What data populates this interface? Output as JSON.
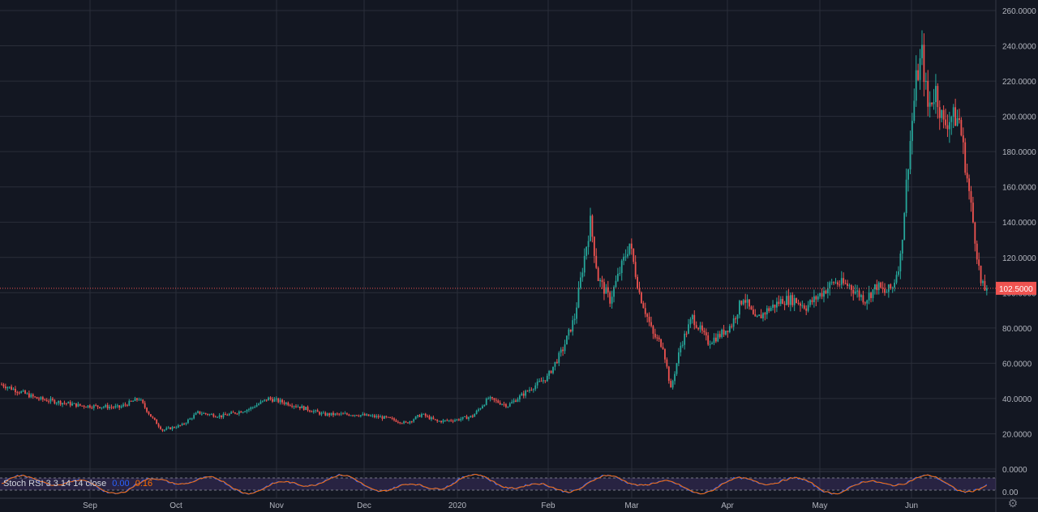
{
  "chart_data": {
    "type": "candlestick",
    "price_axis": {
      "ticks": [
        "0.0000",
        "20.0000",
        "40.0000",
        "60.0000",
        "80.0000",
        "100.0000",
        "120.0000",
        "140.0000",
        "160.0000",
        "180.0000",
        "200.0000",
        "220.0000",
        "240.0000",
        "260.0000"
      ],
      "ylim": [
        0,
        262
      ]
    },
    "time_axis": {
      "labels": [
        "Sep",
        "Oct",
        "Nov",
        "Dec",
        "2020",
        "Feb",
        "Mar",
        "Apr",
        "May",
        "Jun"
      ]
    },
    "last_price": "102.5000",
    "last_price_value": 102.5,
    "grid": true,
    "colors": {
      "up": "#26a69a",
      "down": "#ef5350",
      "background": "#131722",
      "grid": "#2a2e39",
      "stoch_k": "#2962ff",
      "stoch_d": "#ff6d00",
      "stoch_band": "#7e57c2"
    },
    "price_keypoints": [
      [
        0,
        48
      ],
      [
        18,
        40
      ],
      [
        40,
        36
      ],
      [
        60,
        35
      ],
      [
        70,
        40
      ],
      [
        76,
        30
      ],
      [
        82,
        22
      ],
      [
        92,
        25
      ],
      [
        100,
        32
      ],
      [
        112,
        30
      ],
      [
        126,
        34
      ],
      [
        136,
        40
      ],
      [
        150,
        36
      ],
      [
        164,
        31
      ],
      [
        180,
        31
      ],
      [
        196,
        29
      ],
      [
        206,
        26
      ],
      [
        214,
        31
      ],
      [
        222,
        27
      ],
      [
        232,
        28
      ],
      [
        240,
        30
      ],
      [
        248,
        40
      ],
      [
        258,
        36
      ],
      [
        270,
        46
      ],
      [
        278,
        52
      ],
      [
        286,
        68
      ],
      [
        292,
        86
      ],
      [
        296,
        114
      ],
      [
        300,
        140
      ],
      [
        304,
        108
      ],
      [
        310,
        96
      ],
      [
        320,
        128
      ],
      [
        325,
        100
      ],
      [
        332,
        76
      ],
      [
        337,
        70
      ],
      [
        341,
        45
      ],
      [
        346,
        70
      ],
      [
        352,
        86
      ],
      [
        360,
        72
      ],
      [
        366,
        76
      ],
      [
        372,
        82
      ],
      [
        378,
        98
      ],
      [
        384,
        84
      ],
      [
        390,
        90
      ],
      [
        398,
        96
      ],
      [
        404,
        96
      ],
      [
        410,
        92
      ],
      [
        418,
        100
      ],
      [
        424,
        106
      ],
      [
        432,
        104
      ],
      [
        440,
        96
      ],
      [
        446,
        104
      ],
      [
        450,
        100
      ],
      [
        454,
        103
      ],
      [
        458,
        120
      ],
      [
        462,
        175
      ],
      [
        466,
        220
      ],
      [
        469,
        235
      ],
      [
        472,
        205
      ],
      [
        476,
        215
      ],
      [
        480,
        195
      ],
      [
        484,
        200
      ],
      [
        488,
        198
      ],
      [
        492,
        165
      ],
      [
        495,
        140
      ],
      [
        499,
        105
      ],
      [
        502,
        100
      ]
    ],
    "stoch_rsi": {
      "label": "Stoch RSI 3 3 14 14 close",
      "k_value": "0.00",
      "d_value": "0.16",
      "ticks": [
        "0.00"
      ],
      "band": [
        20,
        80
      ]
    }
  },
  "icons": {
    "settings": "gear-icon"
  }
}
